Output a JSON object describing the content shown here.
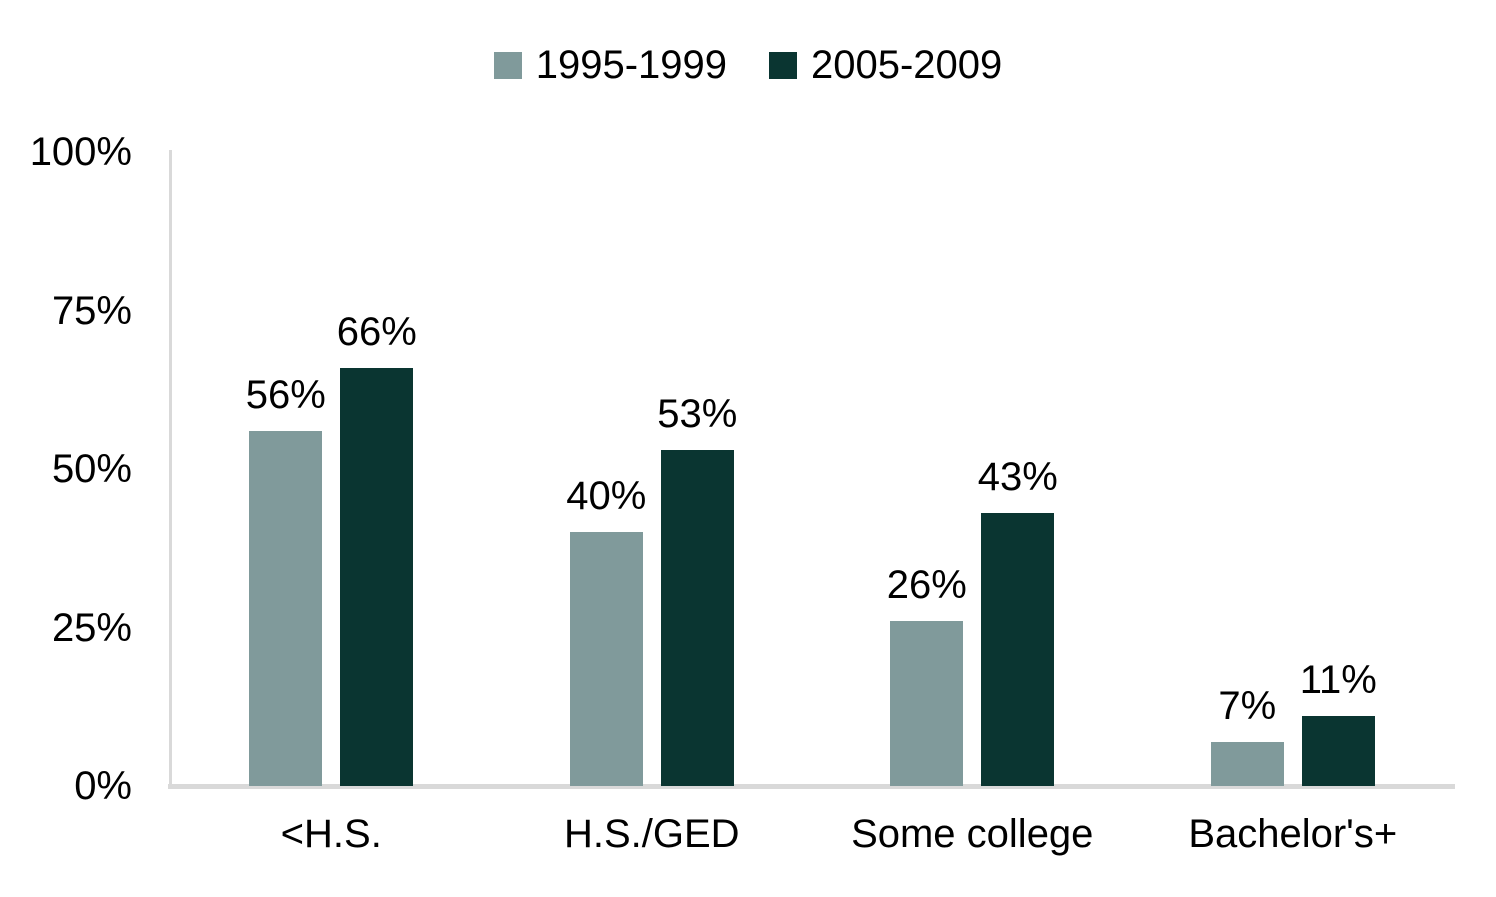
{
  "chart_data": {
    "type": "bar",
    "title": "",
    "xlabel": "",
    "ylabel": "",
    "categories": [
      "<H.S.",
      "H.S./GED",
      "Some college",
      "Bachelor's+"
    ],
    "series": [
      {
        "name": "1995-1999",
        "color": "#809a9b",
        "values": [
          56,
          40,
          26,
          7
        ]
      },
      {
        "name": "2005-2009",
        "color": "#0a3531",
        "values": [
          66,
          53,
          43,
          11
        ]
      }
    ],
    "value_label_suffix": "%",
    "yticks": [
      0,
      25,
      50,
      75,
      100
    ],
    "ytick_suffix": "%",
    "ylim": [
      0,
      100
    ],
    "grid": false,
    "legend_position": "top-center",
    "axis_color": "#d9d9d9",
    "text_color": "#000000",
    "background": "#ffffff"
  }
}
